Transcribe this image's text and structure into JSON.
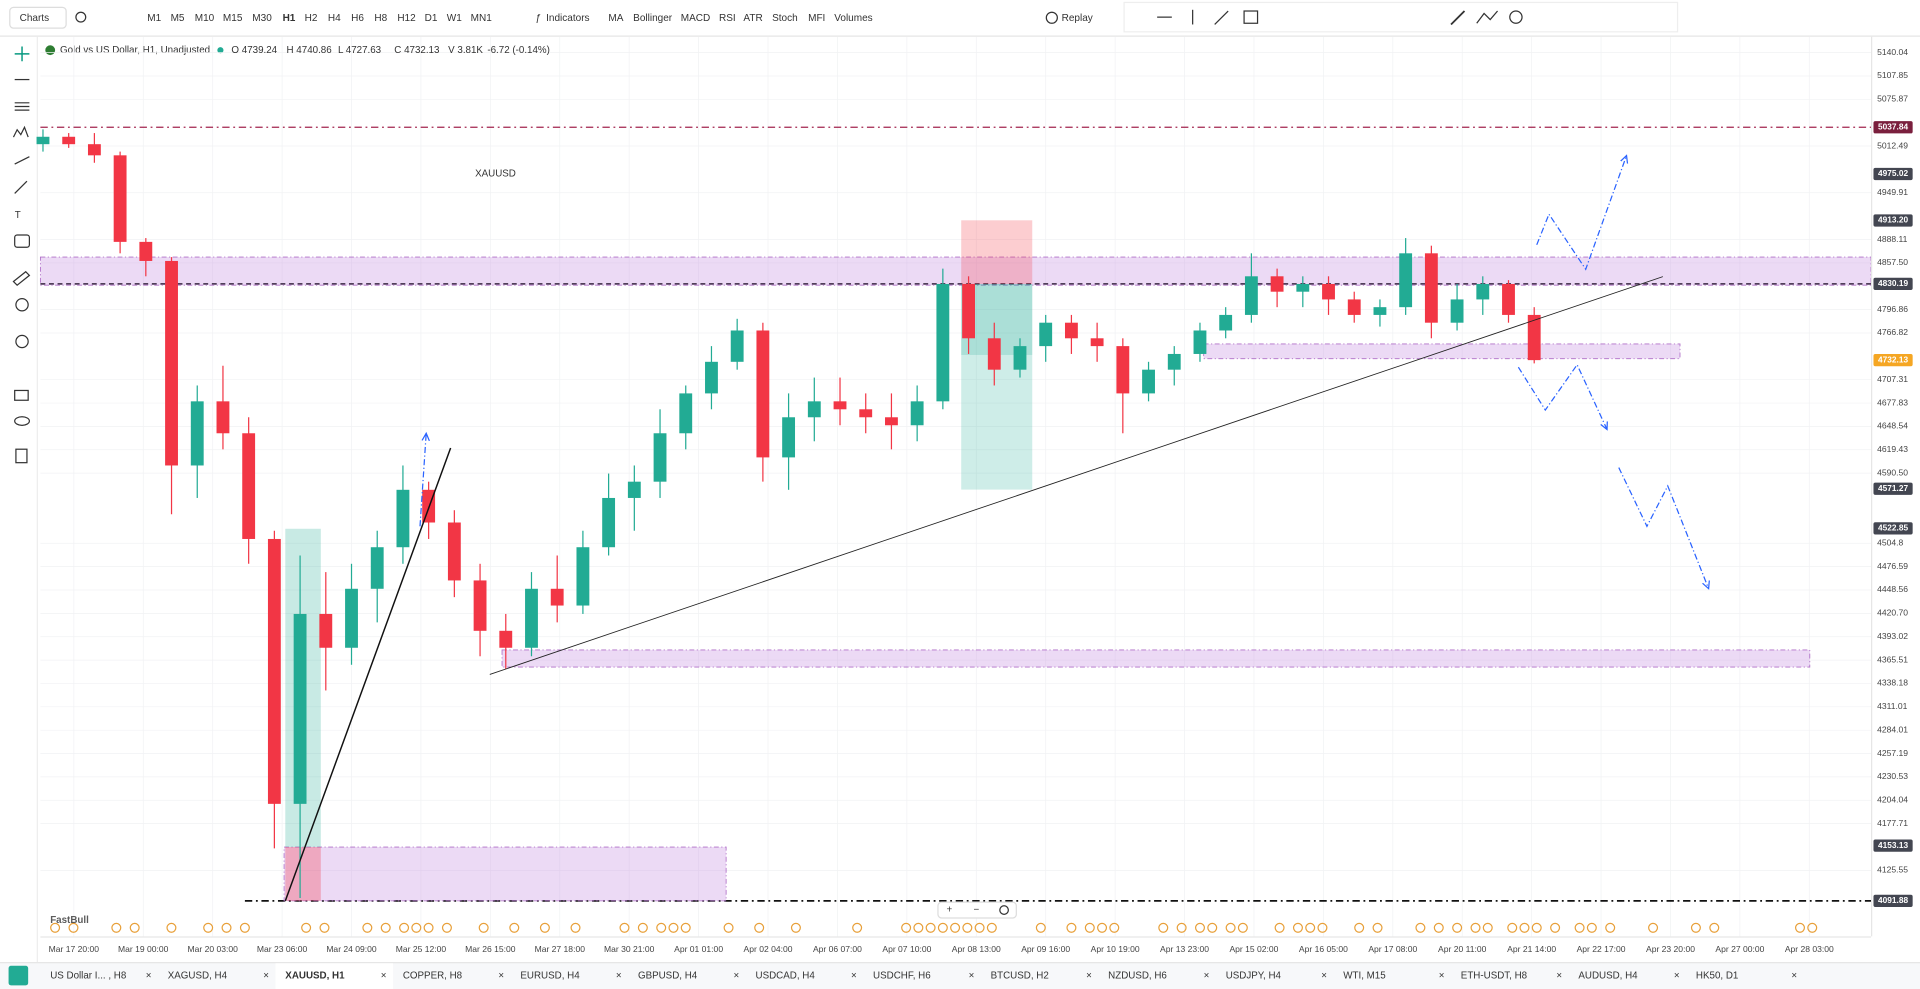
{
  "toolbar": {
    "menu": "Charts",
    "timeframes": [
      "M1",
      "M5",
      "M10",
      "M15",
      "M30",
      "H1",
      "H2",
      "H4",
      "H6",
      "H8",
      "H12",
      "D1",
      "W1",
      "MN1"
    ],
    "active_timeframe": "H1",
    "indicators_button": "Indicators",
    "indicators": [
      "MA",
      "Bollinger",
      "MACD",
      "RSI",
      "ATR",
      "Stoch",
      "MFI",
      "Volumes"
    ],
    "replay": "Replay"
  },
  "symbol": {
    "title": "Gold vs US Dollar, H1, Unadjusted",
    "ohlc": [
      "O 4739.24",
      "H 4740.86",
      "L 4727.63",
      "C 4732.13",
      "V 3.81K",
      "-6.72 (-0.14%)"
    ]
  },
  "watermark": "FastBull",
  "chart_data": {
    "type": "candlestick",
    "annotation": "XAUUSD",
    "log_scale": true,
    "grid": true,
    "up_color": "#22ab94",
    "down_color": "#f23645",
    "xlim": [
      -1,
      711
    ],
    "ylim": [
      4053,
      5162
    ],
    "xticks": [
      {
        "value": 12,
        "label": "Mar 17 20:00"
      },
      {
        "value": 39,
        "label": "Mar 19 00:00"
      },
      {
        "value": 66,
        "label": "Mar 20 03:00"
      },
      {
        "value": 93,
        "label": "Mar 23 06:00"
      },
      {
        "value": 120,
        "label": "Mar 24 09:00"
      },
      {
        "value": 147,
        "label": "Mar 25 12:00"
      },
      {
        "value": 174,
        "label": "Mar 26 15:00"
      },
      {
        "value": 201,
        "label": "Mar 27 18:00"
      },
      {
        "value": 228,
        "label": "Mar 30 21:00"
      },
      {
        "value": 255,
        "label": "Apr 01 01:00"
      },
      {
        "value": 282,
        "label": "Apr 02 04:00"
      },
      {
        "value": 309,
        "label": "Apr 06 07:00"
      },
      {
        "value": 336,
        "label": "Apr 07 10:00"
      },
      {
        "value": 363,
        "label": "Apr 08 13:00"
      },
      {
        "value": 390,
        "label": "Apr 09 16:00"
      },
      {
        "value": 417,
        "label": "Apr 10 19:00"
      },
      {
        "value": 444,
        "label": "Apr 13 23:00"
      },
      {
        "value": 471,
        "label": "Apr 15 02:00"
      },
      {
        "value": 498,
        "label": "Apr 16 05:00"
      },
      {
        "value": 525,
        "label": "Apr 17 08:00"
      },
      {
        "value": 552,
        "label": "Apr 20 11:00"
      },
      {
        "value": 579,
        "label": "Apr 21 14:00"
      },
      {
        "value": 606,
        "label": "Apr 22 17:00"
      },
      {
        "value": 633,
        "label": "Apr 23 20:00"
      },
      {
        "value": 660,
        "label": "Apr 27 00:00"
      },
      {
        "value": 687,
        "label": "Apr 28 03:00"
      }
    ],
    "yticks": [
      5140.04,
      5107.85,
      5075.87,
      5012.49,
      4949.91,
      4888.11,
      {
        "value": 4857.5,
        "label": "4857.50"
      },
      4796.86,
      4766.82,
      4707.31,
      4677.83,
      4648.54,
      4619.43,
      {
        "value": 4590.5,
        "label": "4590.50"
      },
      4504.8,
      4476.59,
      4448.56,
      {
        "value": 4420.7,
        "label": "4420.70"
      },
      4393.02,
      4365.51,
      4338.18,
      4311.01,
      4284.01,
      4257.19,
      4230.53,
      4204.04,
      4177.71,
      4125.55
    ],
    "price_labels": [
      {
        "value": 5037.84,
        "color": "#7a1f3d",
        "line": "dashdot"
      },
      {
        "value": 4975.02,
        "color": "#434651"
      },
      {
        "value": 4913.2,
        "label": "4913.20",
        "color": "#434651"
      },
      {
        "value": 4830.19,
        "color": "#434651",
        "line": "dash"
      },
      {
        "value": 4732.13,
        "color": "#f5a623"
      },
      {
        "value": 4571.27,
        "color": "#434651"
      },
      {
        "value": 4522.85,
        "color": "#434651"
      },
      {
        "value": 4153.13,
        "color": "#434651"
      },
      {
        "value": 4091.88,
        "color": "#434651",
        "line": "dashdot"
      }
    ],
    "x": [
      0,
      10,
      20,
      30,
      40,
      50,
      60,
      70,
      80,
      90,
      100,
      110,
      120,
      130,
      140,
      150,
      160,
      170,
      180,
      190,
      200,
      210,
      220,
      230,
      240,
      250,
      260,
      270,
      280,
      290,
      300,
      310,
      320,
      330,
      340,
      350,
      360,
      370,
      380,
      390,
      400,
      410,
      420,
      430,
      440,
      450,
      460,
      470,
      480,
      490,
      500,
      510,
      520,
      530,
      540,
      550,
      560,
      570,
      580
    ],
    "open": [
      5015,
      5025,
      5015,
      5000,
      4885,
      4860,
      4600,
      4680,
      4640,
      4510,
      4200,
      4420,
      4380,
      4450,
      4500,
      4570,
      4530,
      4460,
      4400,
      4380,
      4450,
      4430,
      4500,
      4560,
      4580,
      4640,
      4690,
      4730,
      4770,
      4610,
      4660,
      4680,
      4670,
      4660,
      4650,
      4680,
      4830,
      4760,
      4720,
      4750,
      4780,
      4760,
      4750,
      4690,
      4720,
      4740,
      4770,
      4790,
      4840,
      4820,
      4830,
      4810,
      4790,
      4800,
      4870,
      4780,
      4810,
      4830,
      4790
    ],
    "high": [
      5035,
      5030,
      5030,
      5005,
      4890,
      4865,
      4700,
      4725,
      4660,
      4520,
      4490,
      4470,
      4480,
      4520,
      4600,
      4580,
      4545,
      4480,
      4420,
      4470,
      4490,
      4520,
      4590,
      4600,
      4670,
      4700,
      4750,
      4785,
      4780,
      4690,
      4710,
      4710,
      4690,
      4690,
      4700,
      4850,
      4840,
      4780,
      4760,
      4790,
      4790,
      4780,
      4760,
      4730,
      4750,
      4780,
      4800,
      4870,
      4850,
      4840,
      4840,
      4820,
      4810,
      4890,
      4880,
      4830,
      4840,
      4835,
      4800
    ],
    "low": [
      5005,
      5010,
      4990,
      4870,
      4840,
      4540,
      4560,
      4620,
      4480,
      4150,
      4095,
      4330,
      4360,
      4410,
      4480,
      4510,
      4440,
      4370,
      4355,
      4370,
      4410,
      4420,
      4490,
      4520,
      4560,
      4620,
      4670,
      4720,
      4580,
      4570,
      4630,
      4650,
      4640,
      4620,
      4630,
      4670,
      4740,
      4700,
      4710,
      4730,
      4740,
      4730,
      4640,
      4680,
      4700,
      4730,
      4760,
      4780,
      4800,
      4800,
      4790,
      4780,
      4775,
      4790,
      4760,
      4770,
      4790,
      4780,
      4728
    ],
    "close": [
      5025,
      5015,
      5000,
      4885,
      4860,
      4600,
      4680,
      4640,
      4510,
      4200,
      4420,
      4380,
      4450,
      4500,
      4570,
      4530,
      4460,
      4400,
      4380,
      4450,
      4430,
      4500,
      4560,
      4580,
      4640,
      4690,
      4730,
      4770,
      4610,
      4660,
      4680,
      4670,
      4660,
      4650,
      4680,
      4830,
      4760,
      4720,
      4750,
      4780,
      4760,
      4750,
      4690,
      4720,
      4740,
      4770,
      4790,
      4840,
      4820,
      4830,
      4810,
      4790,
      4800,
      4870,
      4780,
      4810,
      4830,
      4790,
      4732.13
    ]
  },
  "tabs": {
    "items": [
      "US Dollar I... , H8",
      "XAGUSD, H4",
      "XAUUSD, H1",
      "COPPER, H8",
      "EURUSD, H4",
      "GBPUSD, H4",
      "USDCAD, H4",
      "USDCHF, H6",
      "BTCUSD, H2",
      "NZDUSD, H6",
      "USDJPY, H4",
      "WTI, M15",
      "ETH-USDT, H8",
      "AUDUSD, H4",
      "HK50, D1"
    ],
    "active": 2
  }
}
